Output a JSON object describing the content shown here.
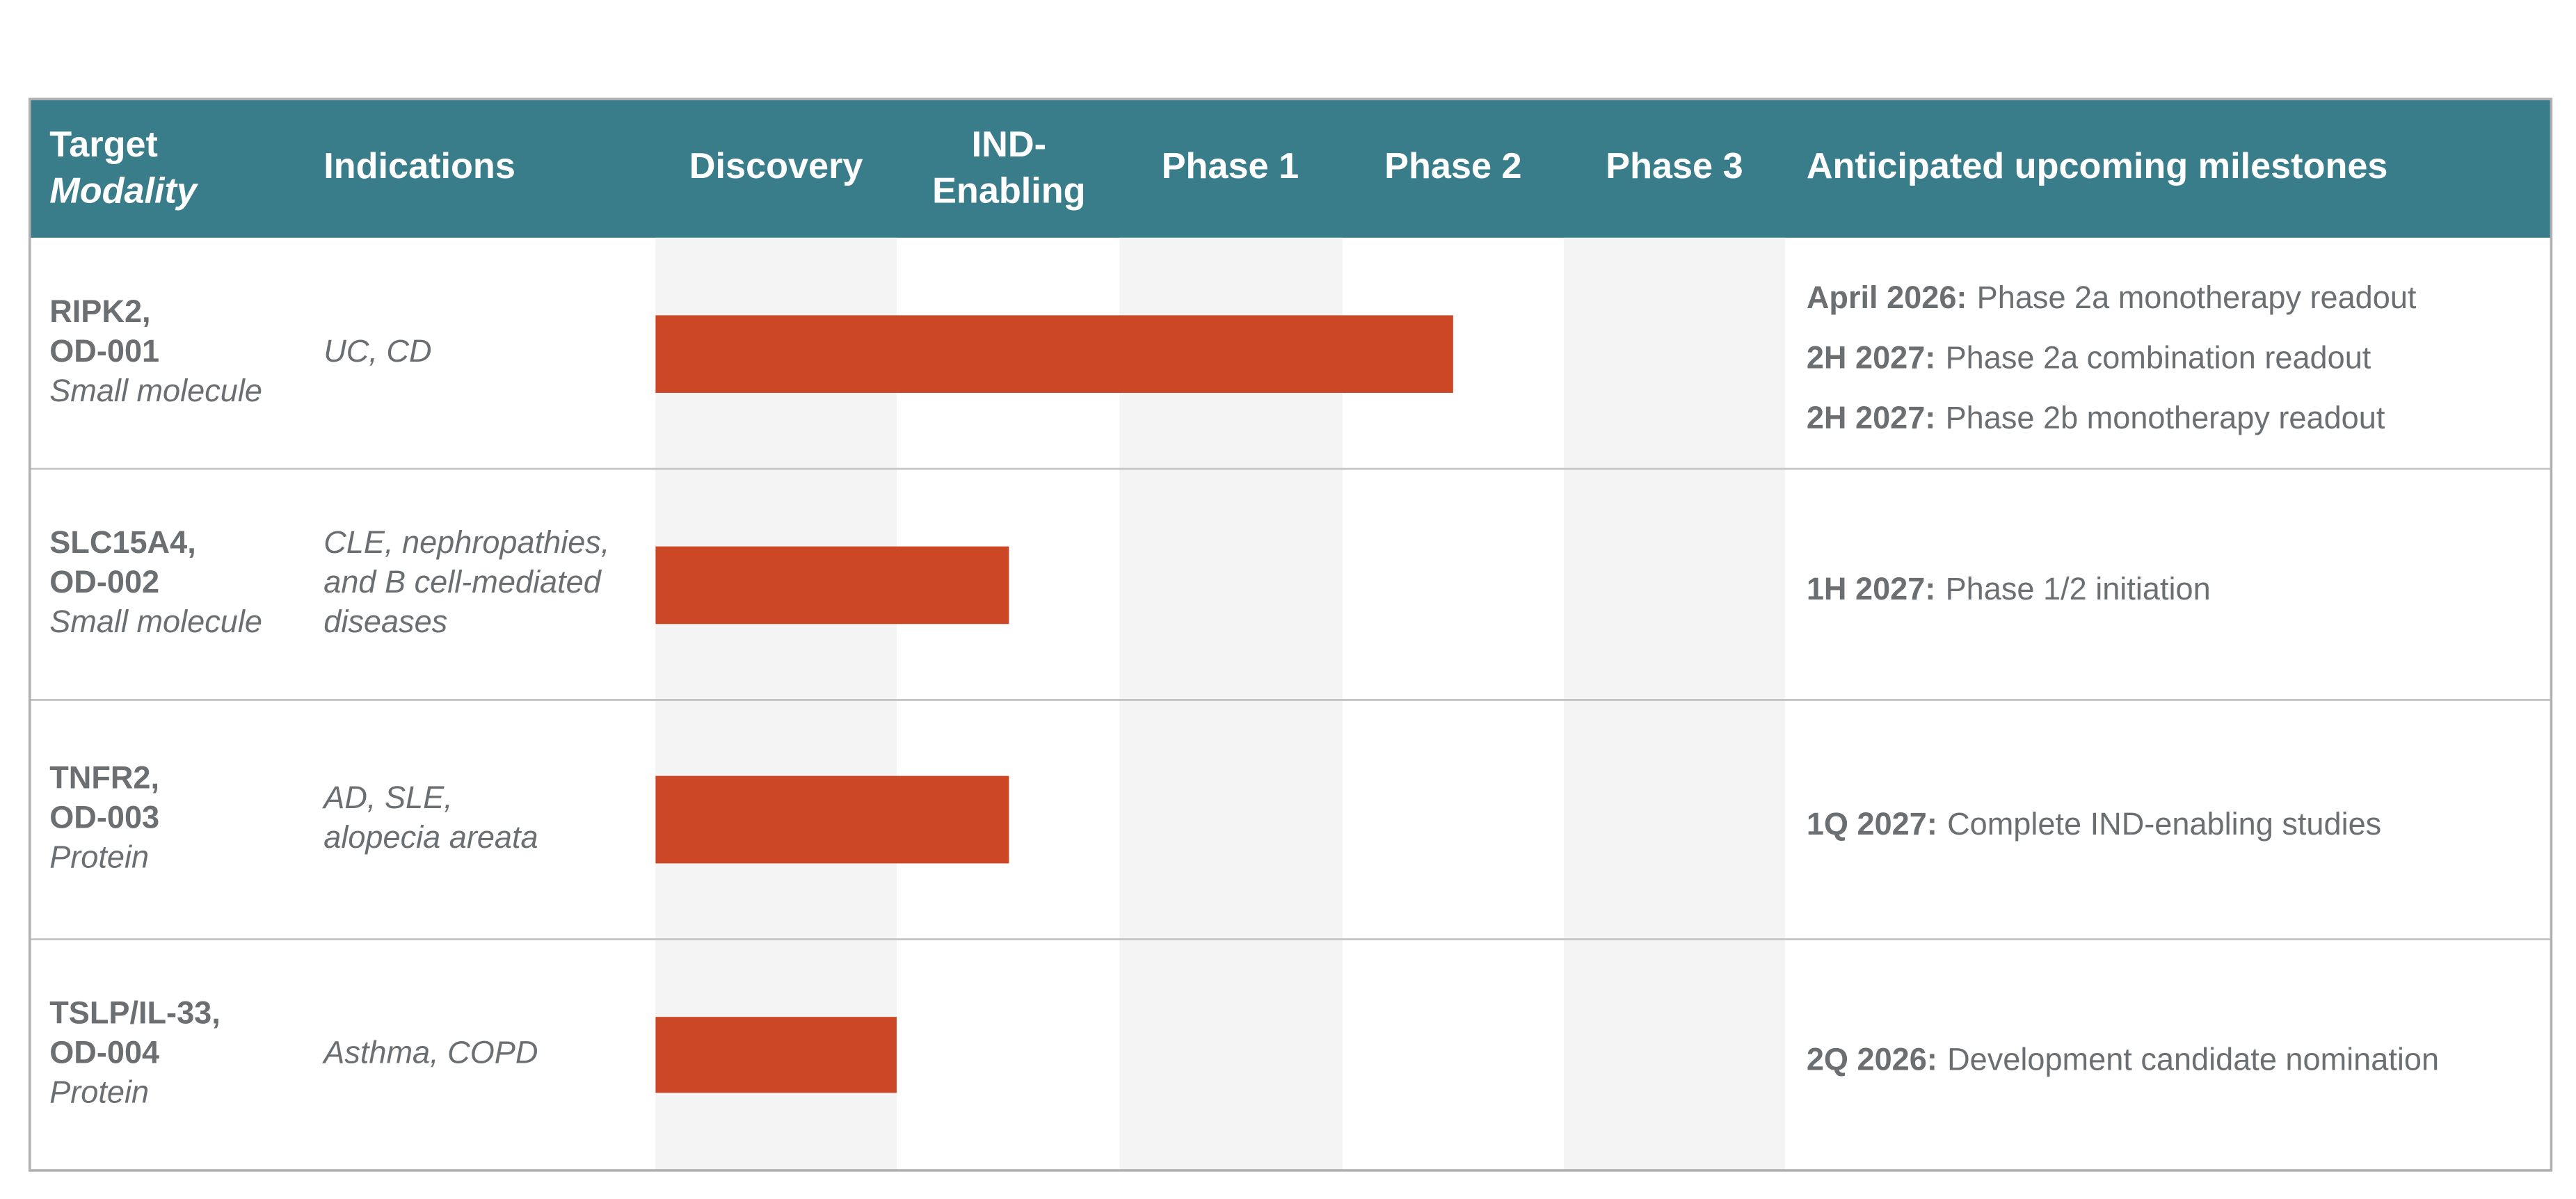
{
  "header": {
    "target": "Target",
    "modality": "Modality",
    "indications": "Indications",
    "discovery": "Discovery",
    "ind_enabling": [
      "IND-",
      "Enabling"
    ],
    "phase_1": "Phase 1",
    "phase_2": "Phase 2",
    "phase_3": "Phase 3",
    "milestones": "Anticipated upcoming milestones"
  },
  "rows": [
    {
      "target": [
        "RIPK2,",
        "OD-001"
      ],
      "modality": "Small molecule",
      "indications": [
        "UC, CD"
      ],
      "milestones": [
        {
          "date": "April 2026:",
          "text": "Phase 2a monotherapy readout"
        },
        {
          "date": "2H 2027:",
          "text": "Phase 2a combination readout"
        },
        {
          "date": "2H 2027:",
          "text": "Phase 2b monotherapy readout"
        }
      ]
    },
    {
      "target": [
        "SLC15A4,",
        "OD-002"
      ],
      "modality": "Small molecule",
      "indications": [
        "CLE, nephropathies,",
        "and B cell-mediated",
        "diseases"
      ],
      "milestones": [
        {
          "date": "1H 2027:",
          "text": "Phase 1/2 initiation"
        }
      ]
    },
    {
      "target": [
        "TNFR2,",
        "OD-003"
      ],
      "modality": "Protein",
      "indications": [
        "AD, SLE,",
        "alopecia areata"
      ],
      "milestones": [
        {
          "date": "1Q 2027:",
          "text": "Complete IND-enabling studies"
        }
      ]
    },
    {
      "target": [
        "TSLP/IL-33,",
        "OD-004"
      ],
      "modality": "Protein",
      "indications": [
        "Asthma, COPD"
      ],
      "milestones": [
        {
          "date": "2Q 2026:",
          "text": "Development candidate nomination"
        }
      ]
    }
  ]
}
